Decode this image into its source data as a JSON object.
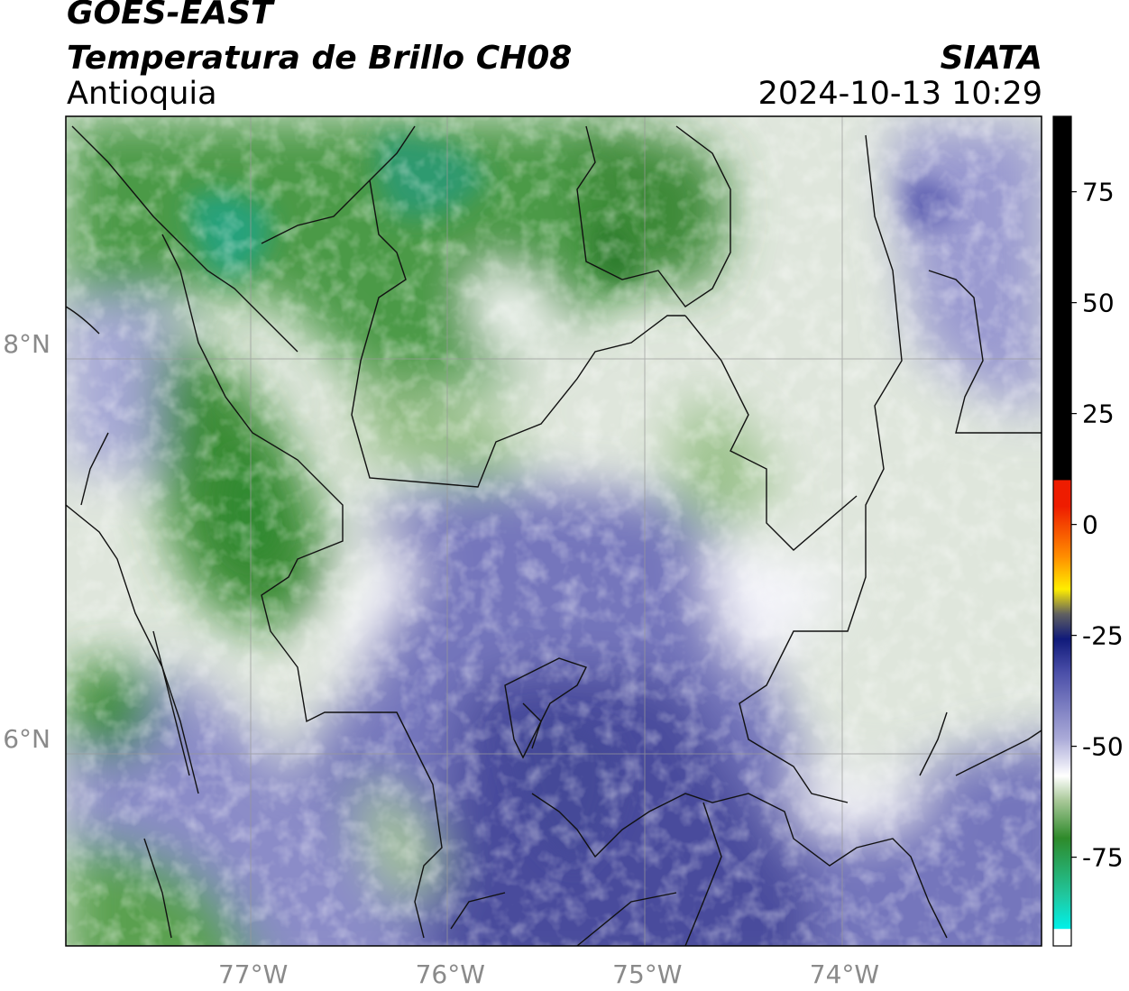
{
  "header": {
    "satellite": "GOES-EAST",
    "product": "Temperatura de Brillo CH08",
    "region": "Antioquia",
    "organization": "SIATA",
    "timestamp": "2024-10-13 10:29"
  },
  "map": {
    "lon_range": [
      -77.95,
      -73.0
    ],
    "lat_range": [
      4.95,
      9.15
    ],
    "x_ticks": [
      {
        "value": -77,
        "label": "77°W"
      },
      {
        "value": -76,
        "label": "76°W"
      },
      {
        "value": -75,
        "label": "75°W"
      },
      {
        "value": -74,
        "label": "74°W"
      }
    ],
    "y_ticks": [
      {
        "value": 8,
        "label": "8°N"
      },
      {
        "value": 6,
        "label": "6°N"
      }
    ],
    "grid": true
  },
  "colorbar": {
    "range": [
      -95,
      92
    ],
    "tick_labels": [
      {
        "value": 75,
        "label": "75"
      },
      {
        "value": 50,
        "label": "50"
      },
      {
        "value": 25,
        "label": "25"
      },
      {
        "value": 0,
        "label": "0"
      },
      {
        "value": -25,
        "label": "-25"
      },
      {
        "value": -50,
        "label": "-50"
      },
      {
        "value": -75,
        "label": "-75"
      }
    ],
    "colors": {
      "warm_black": "#000000",
      "red": "#ee1c00",
      "orange": "#ff8c00",
      "yellow": "#ffee00",
      "navy": "#101a7a",
      "lavender": "#aaaad8",
      "white": "#ffffff",
      "light_green": "#a8c898",
      "green": "#2e8a2a",
      "teal": "#20c8a0",
      "cyan": "#00f0e8"
    }
  }
}
